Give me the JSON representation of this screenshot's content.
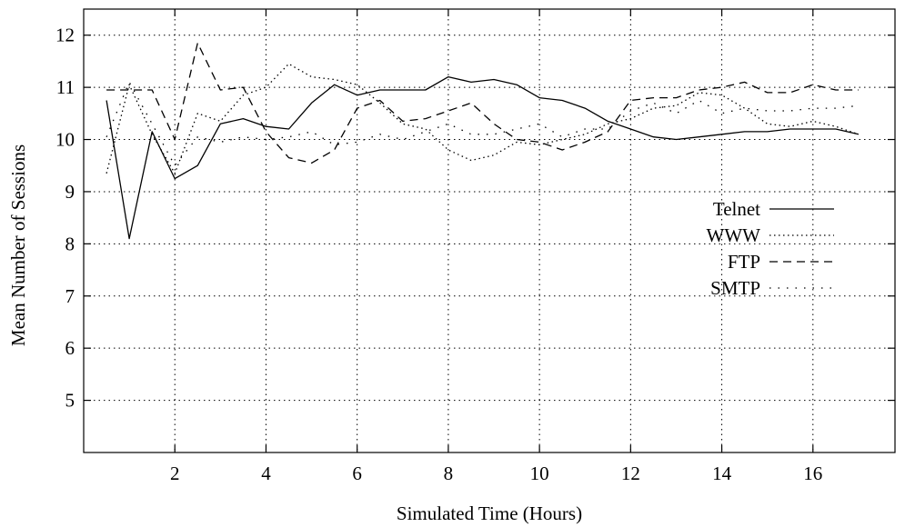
{
  "chart_data": {
    "type": "line",
    "title": "",
    "xlabel": "Simulated Time (Hours)",
    "ylabel": "Mean Number of Sessions",
    "xlim": [
      0,
      17.8
    ],
    "ylim": [
      4,
      12.5
    ],
    "x_ticks": [
      2,
      4,
      6,
      8,
      10,
      12,
      14,
      16
    ],
    "y_ticks": [
      5,
      6,
      7,
      8,
      9,
      10,
      11,
      12
    ],
    "grid": true,
    "legend_position": "right",
    "x": [
      0.5,
      1,
      1.5,
      2,
      2.5,
      3,
      3.5,
      4,
      4.5,
      5,
      5.5,
      6,
      6.5,
      7,
      7.5,
      8,
      8.5,
      9,
      9.5,
      10,
      10.5,
      11,
      11.5,
      12,
      12.5,
      13,
      13.5,
      14,
      14.5,
      15,
      15.5,
      16,
      16.5,
      17
    ],
    "series": [
      {
        "name": "Telnet",
        "style": "solid",
        "values": [
          10.75,
          8.1,
          10.15,
          9.25,
          9.5,
          10.3,
          10.4,
          10.25,
          10.2,
          10.7,
          11.05,
          10.85,
          10.95,
          10.95,
          10.95,
          11.2,
          11.1,
          11.15,
          11.05,
          10.8,
          10.75,
          10.6,
          10.35,
          10.2,
          10.05,
          10.0,
          10.05,
          10.1,
          10.15,
          10.15,
          10.2,
          10.2,
          10.2,
          10.1
        ]
      },
      {
        "name": "WWW",
        "style": "dotted",
        "values": [
          9.35,
          11.05,
          10.1,
          9.35,
          10.5,
          10.35,
          10.85,
          11.0,
          11.45,
          11.2,
          11.15,
          11.05,
          10.7,
          10.3,
          10.2,
          9.8,
          9.6,
          9.7,
          9.95,
          9.9,
          10.0,
          10.1,
          10.3,
          10.4,
          10.6,
          10.65,
          10.9,
          10.85,
          10.6,
          10.3,
          10.25,
          10.35,
          10.25,
          10.1
        ]
      },
      {
        "name": "FTP",
        "style": "dashed",
        "values": [
          10.95,
          10.95,
          10.95,
          10.0,
          11.85,
          10.95,
          11.0,
          10.15,
          9.65,
          9.55,
          9.8,
          10.6,
          10.75,
          10.35,
          10.4,
          10.55,
          10.7,
          10.3,
          10.0,
          9.95,
          9.8,
          9.95,
          10.15,
          10.75,
          10.8,
          10.8,
          10.95,
          11.0,
          11.1,
          10.9,
          10.9,
          11.05,
          10.95,
          10.95
        ]
      },
      {
        "name": "SMTP",
        "style": "loose-dotted",
        "values": [
          10.05,
          11.1,
          10.3,
          9.5,
          10.05,
          9.95,
          10.05,
          10.0,
          10.05,
          10.15,
          9.9,
          9.95,
          10.1,
          10.0,
          10.15,
          10.3,
          10.1,
          10.1,
          10.2,
          10.3,
          10.05,
          10.2,
          10.2,
          10.55,
          10.7,
          10.5,
          10.75,
          10.5,
          10.6,
          10.55,
          10.55,
          10.6,
          10.6,
          10.65
        ]
      }
    ]
  }
}
